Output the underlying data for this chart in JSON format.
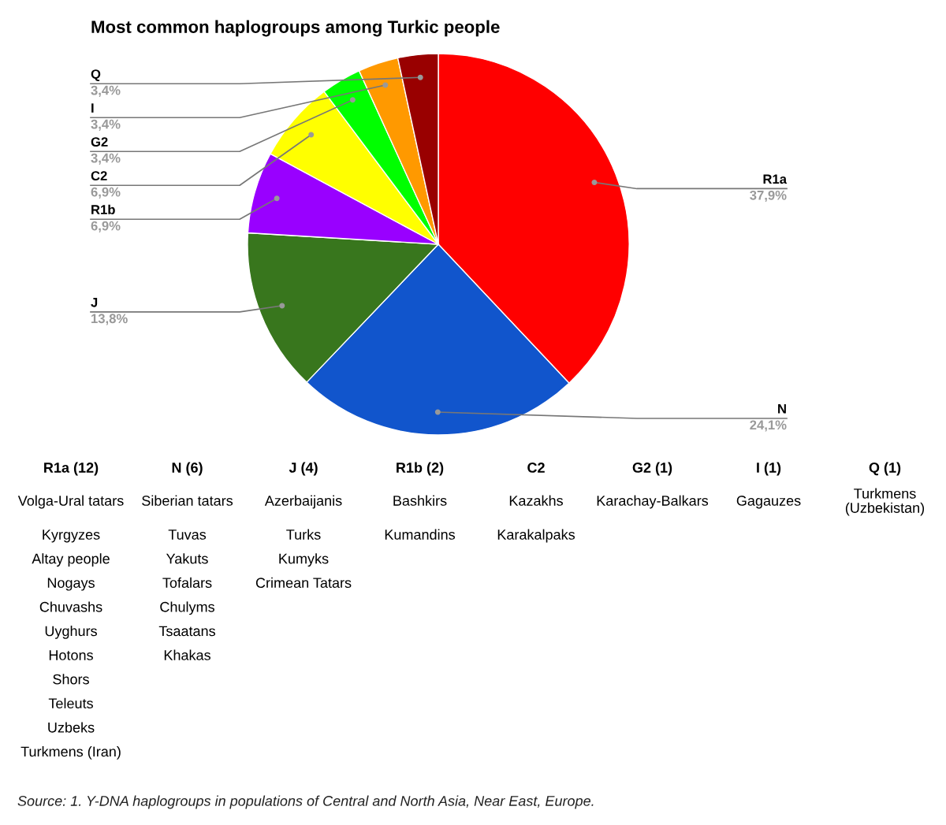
{
  "chart_data": [
    {
      "type": "pie",
      "title": "Most common haplogroups among Turkic people",
      "categories": [
        "R1a",
        "N",
        "J",
        "R1b",
        "C2",
        "G2",
        "I",
        "Q"
      ],
      "values": [
        37.9,
        24.1,
        13.8,
        6.9,
        6.9,
        3.4,
        3.4,
        3.4
      ],
      "value_labels": [
        "37,9%",
        "24,1%",
        "13,8%",
        "6,9%",
        "6,9%",
        "3,4%",
        "3,4%",
        "3,4%"
      ],
      "colors": [
        "#ff0000",
        "#1155cc",
        "#38761d",
        "#9900ff",
        "#ffff00",
        "#00ff00",
        "#ff9900",
        "#990000"
      ],
      "annotations": [
        "Source: 1. Y-DNA haplogroups in populations of Central and North Asia, Near East, Europe."
      ]
    },
    {
      "type": "other",
      "categories": [
        "R1a (12)",
        "N (6)",
        "J (4)",
        "R1b (2)",
        "C2",
        "G2 (1)",
        "I (1)",
        "Q (1)"
      ],
      "cell_labels": [
        [
          "Volga-Ural tatars",
          "Siberian tatars",
          "Azerbaijanis",
          "Bashkirs",
          "Kazakhs",
          "Karachay-Balkars",
          "Gagauzes",
          "Turkmens (Uzbekistan)"
        ],
        [
          "Kyrgyzes",
          "Tuvas",
          "Turks",
          "Kumandins",
          "Karakalpaks",
          null,
          null,
          null
        ],
        [
          "Altay people",
          "Yakuts",
          "Kumyks",
          null,
          null,
          null,
          null,
          null
        ],
        [
          "Nogays",
          "Tofalars",
          "Crimean Tatars",
          null,
          null,
          null,
          null,
          null
        ],
        [
          "Chuvashs",
          "Chulyms",
          null,
          null,
          null,
          null,
          null,
          null
        ],
        [
          "Uyghurs",
          "Tsaatans",
          null,
          null,
          null,
          null,
          null,
          null
        ],
        [
          "Hotons",
          "Khakas",
          null,
          null,
          null,
          null,
          null,
          null
        ],
        [
          "Shors",
          null,
          null,
          null,
          null,
          null,
          null,
          null
        ],
        [
          "Teleuts",
          null,
          null,
          null,
          null,
          null,
          null,
          null
        ],
        [
          "Uzbeks",
          null,
          null,
          null,
          null,
          null,
          null,
          null
        ],
        [
          "Turkmens (Iran)",
          null,
          null,
          null,
          null,
          null,
          null,
          null
        ]
      ]
    }
  ]
}
